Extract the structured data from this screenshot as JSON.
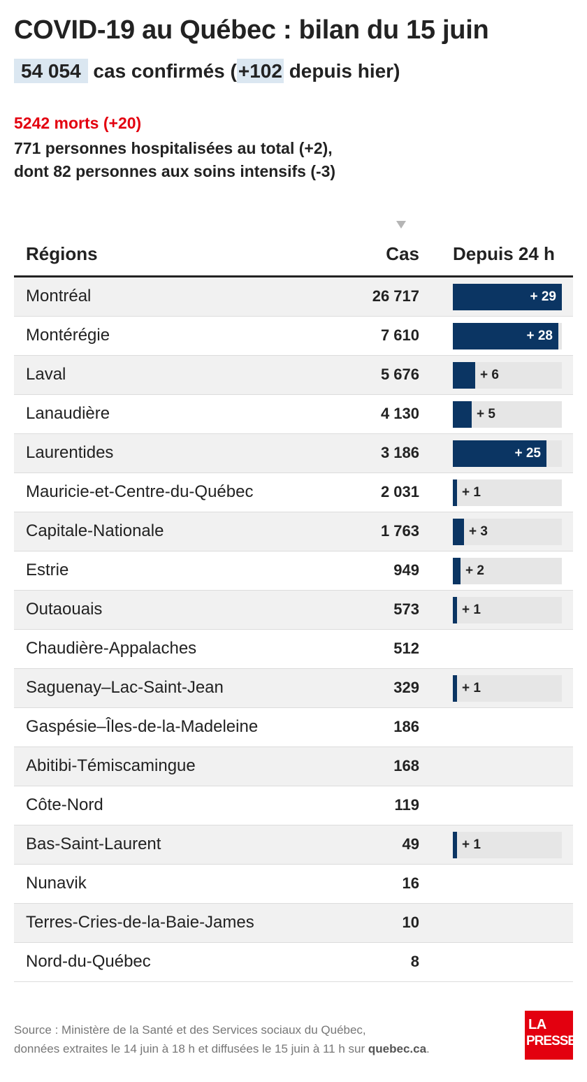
{
  "header": {
    "title": "COVID-19 au Québec : bilan du 15 juin",
    "cases_total": "54 054",
    "cases_text_before": "cas confirmés (",
    "cases_delta": "+102",
    "cases_text_after": " depuis hier)",
    "deaths": "5242 morts (+20)",
    "hospitalized": "771 personnes hospitalisées au total (+2),",
    "intensive_care": "dont 82 personnes aux soins intensifs (-3)"
  },
  "table": {
    "col_region": "Régions",
    "col_cases": "Cas",
    "col_delta": "Depuis 24 h"
  },
  "chart_data": {
    "type": "table",
    "delta_max": 29,
    "rows": [
      {
        "region": "Montréal",
        "cases": "26 717",
        "delta": 29,
        "delta_label": "+ 29"
      },
      {
        "region": "Montérégie",
        "cases": "7 610",
        "delta": 28,
        "delta_label": "+ 28"
      },
      {
        "region": "Laval",
        "cases": "5 676",
        "delta": 6,
        "delta_label": "+ 6"
      },
      {
        "region": "Lanaudière",
        "cases": "4 130",
        "delta": 5,
        "delta_label": "+ 5"
      },
      {
        "region": "Laurentides",
        "cases": "3 186",
        "delta": 25,
        "delta_label": "+ 25"
      },
      {
        "region": "Mauricie-et-Centre-du-Québec",
        "cases": "2 031",
        "delta": 1,
        "delta_label": "+ 1"
      },
      {
        "region": "Capitale-Nationale",
        "cases": "1 763",
        "delta": 3,
        "delta_label": "+ 3"
      },
      {
        "region": "Estrie",
        "cases": "949",
        "delta": 2,
        "delta_label": "+ 2"
      },
      {
        "region": "Outaouais",
        "cases": "573",
        "delta": 1,
        "delta_label": "+ 1"
      },
      {
        "region": "Chaudière-Appalaches",
        "cases": "512",
        "delta": 0,
        "delta_label": ""
      },
      {
        "region": "Saguenay–Lac-Saint-Jean",
        "cases": "329",
        "delta": 1,
        "delta_label": "+ 1"
      },
      {
        "region": "Gaspésie–Îles-de-la-Madeleine",
        "cases": "186",
        "delta": 0,
        "delta_label": ""
      },
      {
        "region": "Abitibi-Témiscamingue",
        "cases": "168",
        "delta": 0,
        "delta_label": ""
      },
      {
        "region": "Côte-Nord",
        "cases": "119",
        "delta": 0,
        "delta_label": ""
      },
      {
        "region": "Bas-Saint-Laurent",
        "cases": "49",
        "delta": 1,
        "delta_label": "+ 1"
      },
      {
        "region": "Nunavik",
        "cases": "16",
        "delta": 0,
        "delta_label": ""
      },
      {
        "region": "Terres-Cries-de-la-Baie-James",
        "cases": "10",
        "delta": 0,
        "delta_label": ""
      },
      {
        "region": "Nord-du-Québec",
        "cases": "8",
        "delta": 0,
        "delta_label": ""
      }
    ]
  },
  "footer": {
    "source_line1": "Source : Ministère de la Santé et des Services sociaux du Québec,",
    "source_line2_before": "données extraites le 14 juin à 18 h et diffusées le 15 juin à 11 h sur ",
    "source_link": "quebec.ca",
    "source_line2_after": ".",
    "logo_line1": "LA",
    "logo_line2": "PRESSE"
  },
  "colors": {
    "bar": "#0b3563",
    "bar_track": "#e6e6e6",
    "deaths": "#e3000f",
    "highlight": "#dbe7f1",
    "logo": "#e3000f"
  }
}
